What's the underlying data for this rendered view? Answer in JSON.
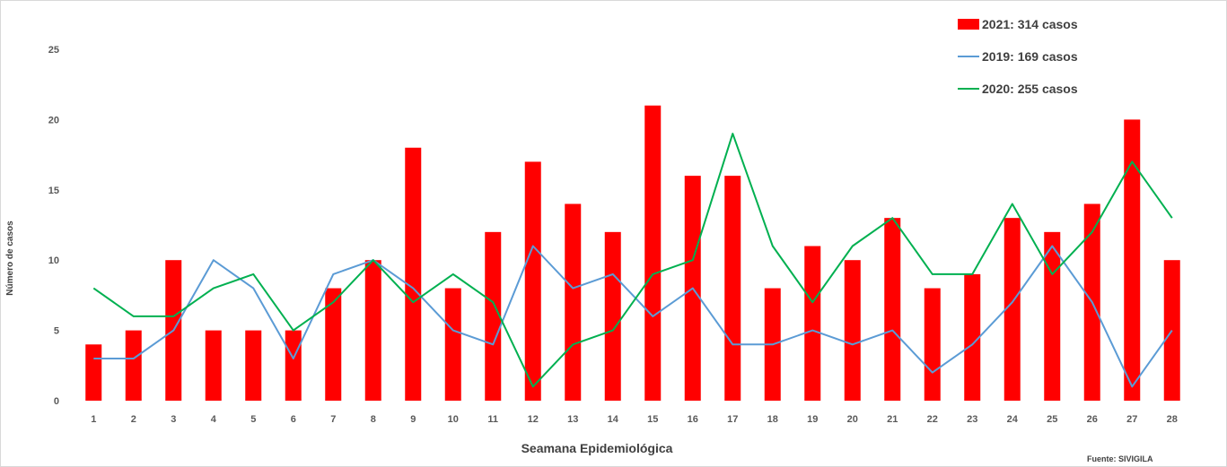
{
  "chart_data": {
    "type": "bar",
    "xlabel": "Seamana Epidemiológica",
    "ylabel": "Número de casos",
    "ylim": [
      0,
      25
    ],
    "yticks": [
      0,
      5,
      10,
      15,
      20,
      25
    ],
    "grid": false,
    "legend_position": "top-right",
    "categories": [
      "1",
      "2",
      "3",
      "4",
      "5",
      "6",
      "7",
      "8",
      "9",
      "10",
      "11",
      "12",
      "13",
      "14",
      "15",
      "16",
      "17",
      "18",
      "19",
      "20",
      "21",
      "22",
      "23",
      "24",
      "25",
      "26",
      "27",
      "28"
    ],
    "series": [
      {
        "name": "2021: 314 casos",
        "kind": "bar",
        "color": "#ff0000",
        "values": [
          4,
          5,
          10,
          5,
          5,
          5,
          8,
          10,
          18,
          8,
          12,
          17,
          14,
          12,
          21,
          16,
          16,
          8,
          11,
          10,
          13,
          8,
          9,
          13,
          12,
          14,
          20,
          10
        ]
      },
      {
        "name": "2019: 169 casos",
        "kind": "line",
        "color": "#5b9bd5",
        "values": [
          3,
          3,
          5,
          10,
          8,
          3,
          9,
          10,
          8,
          5,
          4,
          11,
          8,
          9,
          6,
          8,
          4,
          4,
          5,
          4,
          5,
          2,
          4,
          7,
          11,
          7,
          1,
          5
        ]
      },
      {
        "name": "2020: 255 casos",
        "kind": "line",
        "color": "#00b050",
        "values": [
          8,
          6,
          6,
          8,
          9,
          5,
          7,
          10,
          7,
          9,
          7,
          1,
          4,
          5,
          9,
          10,
          19,
          11,
          7,
          11,
          13,
          9,
          9,
          14,
          9,
          12,
          17,
          13
        ]
      }
    ],
    "source_note": "Fuente: SIVIGILA"
  }
}
